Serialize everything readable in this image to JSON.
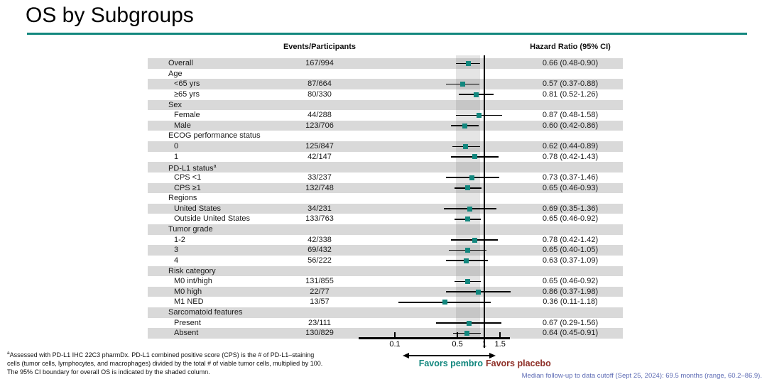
{
  "page": {
    "title": "OS by Subgroups"
  },
  "table": {
    "col_events": "Events/Participants",
    "col_hr": "Hazard Ratio (95% CI)"
  },
  "chart_data": {
    "type": "scatter",
    "subtype": "forest-plot",
    "xscale": "log",
    "xlabel": "Hazard Ratio",
    "x_ticks": [
      "0.1",
      "0.5",
      "1",
      "1.5"
    ],
    "x_tick_values": [
      0.1,
      0.5,
      1,
      1.5
    ],
    "reference_line": 1.0,
    "shaded_ci_band": [
      0.48,
      0.9
    ],
    "favors_left": "Favors pembro",
    "favors_right": "Favors placebo",
    "rows": [
      {
        "label": "Overall",
        "indent": 0,
        "events": "167/994",
        "hr_text": "0.66 (0.48-0.90)",
        "hr": 0.66,
        "lo": 0.48,
        "hi": 0.9
      },
      {
        "label": "Age",
        "indent": 0,
        "header": true
      },
      {
        "label": "<65 yrs",
        "indent": 1,
        "events": "87/664",
        "hr_text": "0.57 (0.37-0.88)",
        "hr": 0.57,
        "lo": 0.37,
        "hi": 0.88
      },
      {
        "label": "≥65 yrs",
        "indent": 1,
        "events": "80/330",
        "hr_text": "0.81 (0.52-1.26)",
        "hr": 0.81,
        "lo": 0.52,
        "hi": 1.26
      },
      {
        "label": "Sex",
        "indent": 0,
        "header": true
      },
      {
        "label": "Female",
        "indent": 1,
        "events": "44/288",
        "hr_text": "0.87 (0.48-1.58)",
        "hr": 0.87,
        "lo": 0.48,
        "hi": 1.58
      },
      {
        "label": "Male",
        "indent": 1,
        "events": "123/706",
        "hr_text": "0.60 (0.42-0.86)",
        "hr": 0.6,
        "lo": 0.42,
        "hi": 0.86
      },
      {
        "label": "ECOG performance status",
        "indent": 0,
        "header": true
      },
      {
        "label": "0",
        "indent": 1,
        "events": "125/847",
        "hr_text": "0.62 (0.44-0.89)",
        "hr": 0.62,
        "lo": 0.44,
        "hi": 0.89
      },
      {
        "label": "1",
        "indent": 1,
        "events": "42/147",
        "hr_text": "0.78 (0.42-1.43)",
        "hr": 0.78,
        "lo": 0.42,
        "hi": 1.43
      },
      {
        "label": "PD-L1 status",
        "sup": "a",
        "indent": 0,
        "header": true
      },
      {
        "label": "CPS <1",
        "indent": 1,
        "events": "33/237",
        "hr_text": "0.73 (0.37-1.46)",
        "hr": 0.73,
        "lo": 0.37,
        "hi": 1.46
      },
      {
        "label": "CPS ≥1",
        "indent": 1,
        "events": "132/748",
        "hr_text": "0.65 (0.46-0.93)",
        "hr": 0.65,
        "lo": 0.46,
        "hi": 0.93
      },
      {
        "label": "Regions",
        "indent": 0,
        "header": true
      },
      {
        "label": "United States",
        "indent": 1,
        "events": "34/231",
        "hr_text": "0.69 (0.35-1.36)",
        "hr": 0.69,
        "lo": 0.35,
        "hi": 1.36
      },
      {
        "label": "Outside United States",
        "indent": 1,
        "events": "133/763",
        "hr_text": "0.65 (0.46-0.92)",
        "hr": 0.65,
        "lo": 0.46,
        "hi": 0.92
      },
      {
        "label": "Tumor grade",
        "indent": 0,
        "header": true
      },
      {
        "label": "1-2",
        "indent": 1,
        "events": "42/338",
        "hr_text": "0.78 (0.42-1.42)",
        "hr": 0.78,
        "lo": 0.42,
        "hi": 1.42
      },
      {
        "label": "3",
        "indent": 1,
        "events": "69/432",
        "hr_text": "0.65 (0.40-1.05)",
        "hr": 0.65,
        "lo": 0.4,
        "hi": 1.05
      },
      {
        "label": "4",
        "indent": 1,
        "events": "56/222",
        "hr_text": "0.63 (0.37-1.09)",
        "hr": 0.63,
        "lo": 0.37,
        "hi": 1.09
      },
      {
        "label": "Risk category",
        "indent": 0,
        "header": true
      },
      {
        "label": "M0 int/high",
        "indent": 1,
        "events": "131/855",
        "hr_text": "0.65 (0.46-0.92)",
        "hr": 0.65,
        "lo": 0.46,
        "hi": 0.92
      },
      {
        "label": "M0 high",
        "indent": 1,
        "events": "22/77",
        "hr_text": "0.86 (0.37-1.98)",
        "hr": 0.86,
        "lo": 0.37,
        "hi": 1.98
      },
      {
        "label": "M1 NED",
        "indent": 1,
        "events": "13/57",
        "hr_text": "0.36 (0.11-1.18)",
        "hr": 0.36,
        "lo": 0.11,
        "hi": 1.18
      },
      {
        "label": "Sarcomatoid features",
        "indent": 0,
        "header": true
      },
      {
        "label": "Present",
        "indent": 1,
        "events": "23/111",
        "hr_text": "0.67 (0.29-1.56)",
        "hr": 0.67,
        "lo": 0.29,
        "hi": 1.56
      },
      {
        "label": "Absent",
        "indent": 1,
        "events": "130/829",
        "hr_text": "0.64 (0.45-0.91)",
        "hr": 0.64,
        "lo": 0.45,
        "hi": 0.91
      }
    ]
  },
  "footnotes": {
    "sup": "a",
    "line1": "Assessed with PD-L1 IHC 22C3 pharmDx. PD-L1 combined positive score (CPS) is the # of PD-L1–staining",
    "line2": "cells (tumor cells, lymphocytes, and macrophages) divided by the total # of viable tumor cells, multiplied by 100.",
    "line3": "The 95% CI boundary for overall OS is indicated by the shaded column."
  },
  "notes": {
    "median_followup": "Median follow-up to data cutoff (Sept 25, 2024): 69.5 months (range, 60.2–86.9)."
  },
  "colors": {
    "teal": "#12877E",
    "dark_red": "#8E2F27",
    "note_blue": "#5D6BB4",
    "row_gray": "#D9D9D9"
  }
}
